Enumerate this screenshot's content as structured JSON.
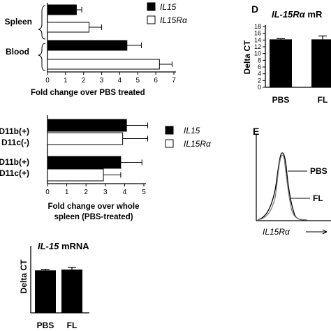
{
  "panel_labels": {
    "D": "D",
    "E": "E"
  },
  "chart_data": [
    {
      "id": "top_left",
      "type": "bar",
      "orientation": "horizontal",
      "categories": [
        "Spleen",
        "Blood"
      ],
      "series": [
        {
          "name": "IL15",
          "color": "#000000",
          "values": [
            1.6,
            4.4
          ],
          "errors": [
            0.3,
            0.8
          ]
        },
        {
          "name": "IL15Rα",
          "color": "#ffffff",
          "values": [
            2.3,
            6.2
          ],
          "errors": [
            0.7,
            0.7
          ]
        }
      ],
      "xlabel": "Fold change over PBS treated",
      "xlim": [
        0,
        7
      ],
      "xticks": [
        "0",
        "1",
        "2",
        "3",
        "4",
        "5",
        "6",
        "7"
      ],
      "legend": [
        "IL15",
        "IL15Rα"
      ]
    },
    {
      "id": "mid_left",
      "type": "bar",
      "orientation": "horizontal",
      "categories": [
        [
          "D11b(+)",
          "D11c(-)"
        ],
        [
          "D11b(+)",
          "D11c(+)"
        ]
      ],
      "series": [
        {
          "name": "IL15",
          "color": "#000000",
          "values": [
            4.1,
            3.8
          ],
          "errors": [
            1.1,
            1.1
          ]
        },
        {
          "name": "IL15Rα",
          "color": "#ffffff",
          "values": [
            3.9,
            2.9
          ],
          "errors": [
            1.3,
            0.9
          ]
        }
      ],
      "xlabel": [
        "Fold change over whole",
        "spleen (PBS-treated)"
      ],
      "xlim": [
        0,
        5
      ],
      "xticks": [
        "0",
        "1",
        "2",
        "3",
        "4",
        "5"
      ],
      "legend": [
        "IL15",
        "IL15Rα"
      ]
    },
    {
      "id": "bottom_left",
      "type": "bar",
      "title_italic": "IL-15",
      "title_rest": " mRNA",
      "categories": [
        "PBS",
        "FL"
      ],
      "values": [
        15.2,
        15.5
      ],
      "errors": [
        0.4,
        0.8
      ],
      "ylabel": "Delta CT",
      "ylim": [
        0,
        20
      ]
    },
    {
      "id": "panel_D",
      "type": "bar",
      "title_italic": "IL-15Rα",
      "title_rest": " mR",
      "categories": [
        "PBS",
        "FL"
      ],
      "values": [
        14.2,
        14.2
      ],
      "errors": [
        0.2,
        1.0
      ],
      "ylabel": "Delta CT",
      "ylim": [
        0,
        18
      ],
      "yticks": [
        "0",
        "2",
        "4",
        "6",
        "8",
        "10",
        "12",
        "14",
        "16",
        "18"
      ]
    },
    {
      "id": "panel_E",
      "type": "histogram-overlay",
      "series": [
        {
          "name": "PBS",
          "style": "solid"
        },
        {
          "name": "FL",
          "style": "solid"
        }
      ],
      "xlabel": "IL15Rα"
    }
  ]
}
